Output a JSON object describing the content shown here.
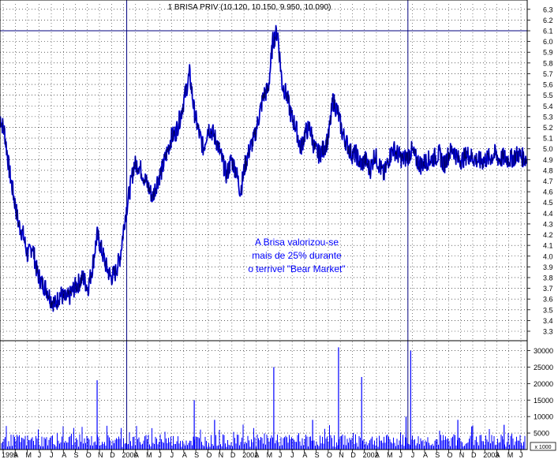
{
  "chart_data": [
    {
      "type": "line",
      "title": "1 BRISA PRIV (10.120, 10.150, 9.950, 10.090)",
      "colors": {
        "price": "#0000ff",
        "price_dark": "#000000",
        "reference_line": "#000080",
        "grid": "#000000",
        "background": "#ffffff"
      },
      "ylim": [
        3.3,
        6.35
      ],
      "yticks": [
        "6.3",
        "6.2",
        "6.1",
        "6.0",
        "5.9",
        "5.8",
        "5.7",
        "5.6",
        "5.5",
        "5.4",
        "5.3",
        "5.2",
        "5.1",
        "5.0",
        "4.9",
        "4.8",
        "4.7",
        "4.6",
        "4.5",
        "4.4",
        "4.3",
        "4.2",
        "4.1",
        "4.0",
        "3.9",
        "3.8",
        "3.7",
        "3.6",
        "3.5",
        "3.4",
        "3.3"
      ],
      "xlim": [
        0,
        57
      ],
      "xticks": [
        "1999",
        "A",
        "M",
        "J",
        "J",
        "A",
        "S",
        "O",
        "N",
        "D",
        "2000",
        "A",
        "M",
        "J",
        "J",
        "A",
        "S",
        "O",
        "N",
        "D",
        "2001",
        "A",
        "M",
        "J",
        "J",
        "A",
        "S",
        "O",
        "N",
        "D",
        "2002",
        "A",
        "M",
        "J",
        "J",
        "A",
        "S",
        "O",
        "N",
        "D",
        "2003",
        "A",
        "M",
        "J"
      ],
      "vertical_lines_x": [
        13.7,
        44.1
      ],
      "horizontal_line_y": 6.1,
      "annotation": [
        "A Brisa valorizou-se",
        "mais de 25%  durante",
        "o terrivel \"Bear Market\""
      ],
      "series": [
        {
          "x": [
            0,
            0.5,
            1,
            1.5,
            2,
            2.5,
            3,
            3.5,
            4,
            4.5,
            5,
            5.5,
            6,
            6.5,
            7,
            7.5,
            8,
            8.5,
            9,
            9.5,
            10,
            10.5,
            11,
            11.5,
            12,
            12.5,
            13,
            13.5,
            14,
            14.5,
            15,
            15.5,
            16,
            16.5,
            17,
            17.5,
            18,
            18.5,
            19,
            19.5,
            20,
            20.5,
            21,
            21.5,
            22,
            22.5,
            23,
            23.5,
            24,
            24.5,
            25,
            25.5,
            26,
            26.5,
            27,
            27.5,
            28,
            28.5,
            29,
            29.5,
            30,
            30.5,
            31,
            31.5,
            32,
            32.5,
            33,
            33.5,
            34,
            34.5,
            35,
            35.5,
            36,
            36.5,
            37,
            37.5,
            38,
            38.5,
            39,
            39.5,
            40,
            40.5,
            41,
            41.5,
            42,
            42.5,
            43,
            43.5,
            44,
            44.5,
            45,
            45.5,
            46,
            46.5,
            47,
            47.5,
            48,
            48.5,
            49,
            49.5,
            50,
            50.5,
            51,
            51.5,
            52,
            52.5,
            53,
            53.5,
            54,
            54.5,
            55,
            55.5,
            56,
            56.5,
            57
          ],
          "y": [
            5.3,
            5.15,
            4.8,
            4.55,
            4.3,
            4.2,
            4.0,
            4.1,
            3.85,
            3.75,
            3.7,
            3.6,
            3.55,
            3.65,
            3.6,
            3.62,
            3.7,
            3.75,
            3.8,
            3.7,
            3.9,
            4.2,
            4.05,
            3.9,
            3.8,
            3.85,
            4.0,
            4.35,
            4.6,
            4.85,
            4.85,
            4.75,
            4.65,
            4.55,
            4.7,
            4.8,
            4.95,
            5.1,
            5.15,
            5.3,
            5.5,
            5.7,
            5.35,
            5.15,
            5.0,
            5.2,
            5.15,
            5.05,
            4.9,
            4.75,
            4.9,
            4.8,
            4.6,
            4.85,
            5.0,
            5.1,
            5.3,
            5.5,
            5.55,
            6.0,
            6.1,
            5.6,
            5.5,
            5.3,
            5.2,
            5.0,
            5.15,
            5.2,
            5.0,
            4.95,
            5.0,
            5.1,
            5.45,
            5.35,
            5.15,
            5.05,
            4.95,
            4.95,
            4.85,
            4.9,
            4.8,
            4.95,
            4.85,
            4.75,
            4.9,
            5.0,
            4.95,
            4.9,
            4.92,
            4.98,
            4.9,
            4.85,
            4.88,
            4.9,
            4.92,
            4.95,
            4.85,
            4.95,
            5.0,
            4.9,
            4.9,
            4.95,
            4.92,
            4.9,
            4.88,
            4.9,
            4.92,
            4.95,
            4.9,
            4.92,
            4.9,
            4.92,
            4.95,
            4.92,
            4.9
          ]
        }
      ]
    },
    {
      "type": "bar",
      "ylim": [
        0,
        33000
      ],
      "yticks": [
        "30000",
        "25000",
        "20000",
        "15000",
        "10000",
        "5000"
      ],
      "axis_box_label": "x 1000",
      "colors": {
        "bars": "#0000ff"
      },
      "spikes": [
        {
          "x": 10.5,
          "value": 21000
        },
        {
          "x": 21.0,
          "value": 15000
        },
        {
          "x": 23.2,
          "value": 9000
        },
        {
          "x": 29.6,
          "value": 25000
        },
        {
          "x": 33.8,
          "value": 9000
        },
        {
          "x": 36.6,
          "value": 31000
        },
        {
          "x": 39.1,
          "value": 22000
        },
        {
          "x": 43.9,
          "value": 10000
        },
        {
          "x": 44.4,
          "value": 30000
        },
        {
          "x": 49.5,
          "value": 9000
        },
        {
          "x": 51.0,
          "value": 7000
        },
        {
          "x": 54.5,
          "value": 7500
        }
      ]
    }
  ]
}
